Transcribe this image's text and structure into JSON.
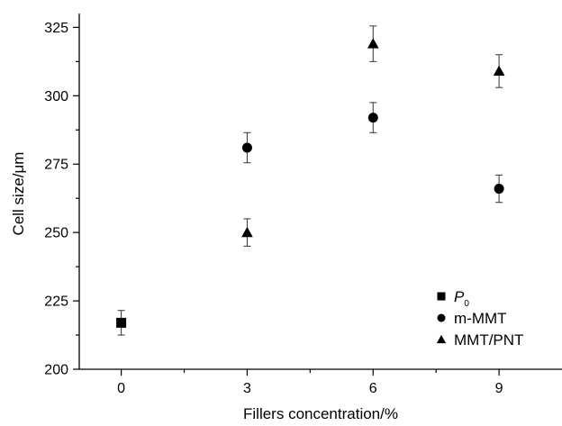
{
  "chart_data": {
    "type": "scatter",
    "title": "",
    "xlabel": "Fillers concentration/%",
    "ylabel": "Cell size/μm",
    "xlim": [
      -1,
      10.5
    ],
    "ylim": [
      200,
      335
    ],
    "x_ticks": [
      0,
      3,
      6,
      9
    ],
    "x_minor_ticks": [
      1.5,
      4.5,
      7.5
    ],
    "y_ticks": [
      200,
      225,
      250,
      275,
      300,
      325
    ],
    "y_minor_ticks": [
      212.5,
      237.5,
      262.5,
      287.5,
      312.5
    ],
    "grid": false,
    "legend_position": "bottom-right",
    "series": [
      {
        "name": "P",
        "name_subscript": "0",
        "marker": "square",
        "points": [
          {
            "x": 0,
            "y": 217,
            "err": 4.5
          }
        ]
      },
      {
        "name": "m-MMT",
        "marker": "circle",
        "points": [
          {
            "x": 3,
            "y": 281,
            "err": 5.5
          },
          {
            "x": 6,
            "y": 292,
            "err": 5.5
          },
          {
            "x": 9,
            "y": 266,
            "err": 5
          }
        ]
      },
      {
        "name": "MMT/PNT",
        "marker": "triangle",
        "points": [
          {
            "x": 3,
            "y": 250,
            "err": 5
          },
          {
            "x": 6,
            "y": 319,
            "err": 6.5
          },
          {
            "x": 9,
            "y": 309,
            "err": 6
          }
        ]
      }
    ]
  }
}
